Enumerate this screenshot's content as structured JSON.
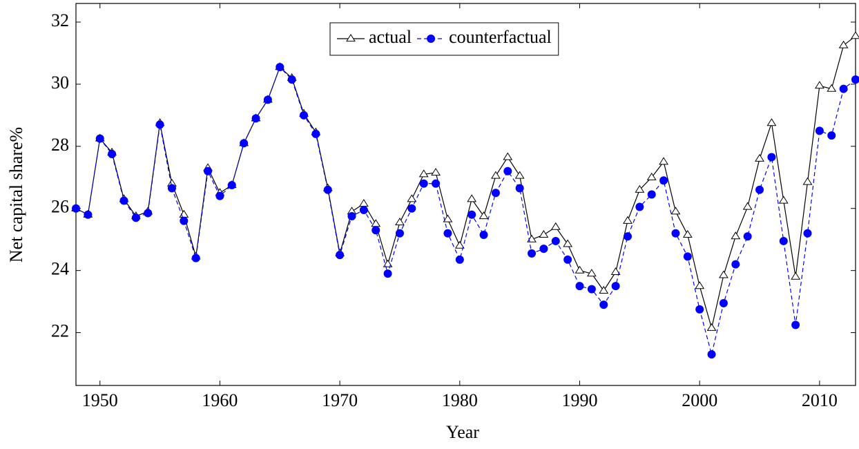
{
  "chart_data": {
    "type": "line",
    "x_label": "Year",
    "y_label": "Net capital share%",
    "x": [
      1948,
      1949,
      1950,
      1951,
      1952,
      1953,
      1954,
      1955,
      1956,
      1957,
      1958,
      1959,
      1960,
      1961,
      1962,
      1963,
      1964,
      1965,
      1966,
      1967,
      1968,
      1969,
      1970,
      1971,
      1972,
      1973,
      1974,
      1975,
      1976,
      1977,
      1978,
      1979,
      1980,
      1981,
      1982,
      1983,
      1984,
      1985,
      1986,
      1987,
      1988,
      1989,
      1990,
      1991,
      1992,
      1993,
      1994,
      1995,
      1996,
      1997,
      1998,
      1999,
      2000,
      2001,
      2002,
      2003,
      2004,
      2005,
      2006,
      2007,
      2008,
      2009,
      2010,
      2011,
      2012,
      2013
    ],
    "series": [
      {
        "name": "actual",
        "color": "#000000",
        "marker": "triangle",
        "dash": false,
        "values": [
          26.0,
          25.8,
          28.25,
          27.8,
          26.3,
          25.75,
          25.9,
          28.75,
          26.8,
          25.8,
          24.45,
          27.3,
          26.5,
          26.75,
          28.1,
          28.9,
          29.5,
          30.55,
          30.2,
          29.05,
          28.45,
          26.65,
          24.55,
          25.9,
          26.15,
          25.5,
          24.2,
          25.55,
          26.3,
          27.1,
          27.15,
          25.65,
          24.8,
          26.3,
          25.75,
          27.05,
          27.65,
          27.05,
          25.0,
          25.15,
          25.4,
          24.85,
          24.0,
          23.9,
          23.35,
          23.95,
          25.6,
          26.6,
          27.0,
          27.5,
          25.9,
          25.15,
          23.5,
          22.15,
          23.85,
          25.1,
          26.05,
          27.6,
          28.75,
          26.25,
          23.8,
          26.85,
          29.95,
          29.85,
          31.25,
          31.55
        ]
      },
      {
        "name": "counterfactual",
        "color": "#0000ff",
        "marker": "circle",
        "dash": true,
        "values": [
          26.0,
          25.8,
          28.25,
          27.75,
          26.25,
          25.7,
          25.85,
          28.7,
          26.65,
          25.6,
          24.4,
          27.2,
          26.4,
          26.75,
          28.1,
          28.9,
          29.5,
          30.55,
          30.15,
          29.0,
          28.4,
          26.6,
          24.5,
          25.75,
          25.95,
          25.3,
          23.9,
          25.2,
          26.0,
          26.8,
          26.8,
          25.2,
          24.35,
          25.8,
          25.15,
          26.5,
          27.2,
          26.65,
          24.55,
          24.7,
          24.95,
          24.35,
          23.5,
          23.4,
          22.9,
          23.5,
          25.1,
          26.05,
          26.45,
          26.9,
          25.2,
          24.45,
          22.75,
          21.3,
          22.95,
          24.2,
          25.1,
          26.6,
          27.65,
          24.95,
          22.25,
          25.2,
          28.5,
          28.35,
          29.85,
          30.15
        ]
      }
    ],
    "xlim": [
      1948,
      2013
    ],
    "ylim": [
      20.3,
      32.6
    ],
    "xticks": [
      1950,
      1960,
      1970,
      1980,
      1990,
      2000,
      2010
    ],
    "yticks": [
      22,
      24,
      26,
      28,
      30,
      32
    ],
    "legend_position": "top"
  }
}
